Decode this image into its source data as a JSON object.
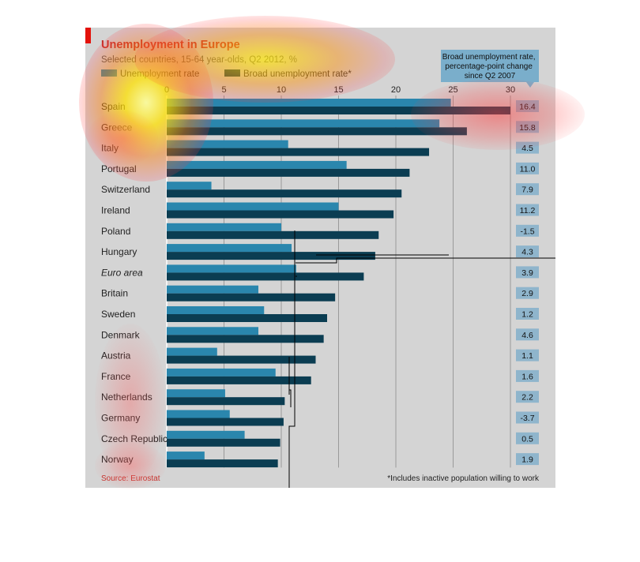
{
  "chart_data": {
    "type": "bar",
    "orientation": "horizontal",
    "title": "Unemployment in Europe",
    "subtitle": "Selected countries, 15-64 year-olds, Q2 2012, %",
    "legend": {
      "placement": "top-left",
      "entries": [
        "Unemployment rate",
        "Broad unemployment rate*"
      ]
    },
    "categories": [
      "Spain",
      "Greece",
      "Italy",
      "Portugal",
      "Switzerland",
      "Ireland",
      "Poland",
      "Hungary",
      "Euro area",
      "Britain",
      "Sweden",
      "Denmark",
      "Austria",
      "France",
      "Netherlands",
      "Germany",
      "Czech Republic",
      "Norway"
    ],
    "italic_categories": [
      "Euro area"
    ],
    "series": [
      {
        "name": "Unemployment rate",
        "color": "#2a86ad",
        "values": [
          24.8,
          23.8,
          10.6,
          15.7,
          3.9,
          15.0,
          10.0,
          10.9,
          11.3,
          8.0,
          8.5,
          8.0,
          4.4,
          9.5,
          5.1,
          5.5,
          6.8,
          3.3
        ]
      },
      {
        "name": "Broad unemployment rate*",
        "color": "#0b3d52",
        "values": [
          30.0,
          26.2,
          22.9,
          21.2,
          20.5,
          19.8,
          18.5,
          18.2,
          17.2,
          14.7,
          14.0,
          13.7,
          13.0,
          12.6,
          10.3,
          10.2,
          9.9,
          9.7
        ]
      }
    ],
    "right_column": {
      "header": "Broad unemployment rate, percentage-point change since Q2 2007",
      "values": [
        "16.4",
        "15.8",
        "4.5",
        "11.0",
        "7.9",
        "11.2",
        "-1.5",
        "4.3",
        "3.9",
        "2.9",
        "1.2",
        "4.6",
        "1.1",
        "1.6",
        "2.2",
        "-3.7",
        "0.5",
        "1.9"
      ]
    },
    "x_axis": {
      "range": [
        0,
        30
      ],
      "ticks": [
        0,
        5,
        10,
        15,
        20,
        25,
        30
      ],
      "tick_labels": [
        "0",
        "5",
        "10",
        "15",
        "20",
        "25",
        "30"
      ],
      "position": "top",
      "grid": true
    },
    "source": "Source: Eurostat",
    "footnote": "*Includes inactive population willing to work",
    "colors": {
      "background": "#d4d4d4",
      "title": "#c4302b",
      "accent_bar": "#e3120b",
      "header_box": "#7aaecb",
      "value_box": "#8fb5cc"
    }
  }
}
